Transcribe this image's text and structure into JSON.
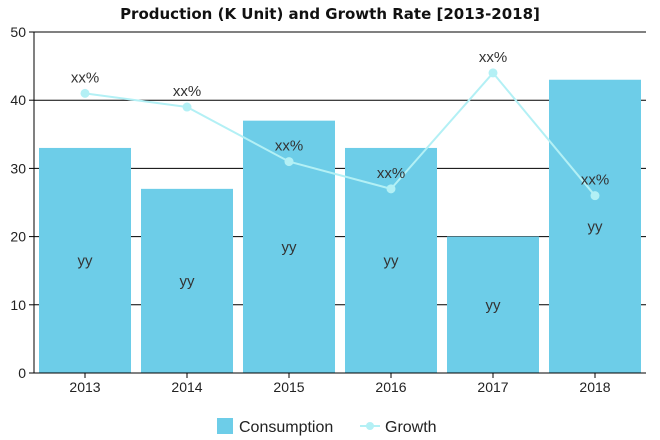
{
  "chart_data": {
    "type": "bar",
    "title": "Production (K Unit) and Growth Rate [2013-2018]",
    "categories": [
      "2013",
      "2014",
      "2015",
      "2016",
      "2017",
      "2018"
    ],
    "series": [
      {
        "name": "Consumption",
        "type": "bar",
        "color": "#6dcde8",
        "values": [
          33,
          27,
          37,
          33,
          20,
          43
        ],
        "labels": [
          "yy",
          "yy",
          "yy",
          "yy",
          "yy",
          "yy"
        ]
      },
      {
        "name": "Growth",
        "type": "line",
        "color": "#b3f0f5",
        "values": [
          41,
          39,
          31,
          27,
          44,
          26
        ],
        "labels": [
          "xx%",
          "xx%",
          "xx%",
          "xx%",
          "xx%",
          "xx%"
        ]
      }
    ],
    "ylim": [
      0,
      50
    ],
    "yticks": [
      "0",
      "10",
      "20",
      "30",
      "40",
      "50"
    ],
    "xlabel": "",
    "ylabel": "",
    "grid": true,
    "legend": "bottom"
  }
}
